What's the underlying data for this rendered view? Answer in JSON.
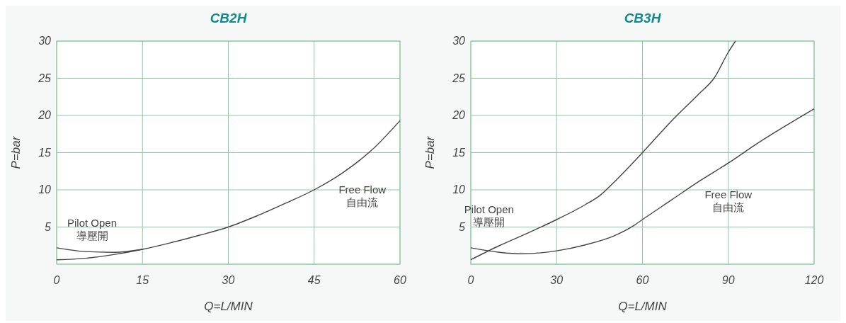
{
  "chart_data": [
    {
      "type": "line",
      "title": "CB2H",
      "xlabel": "Q=L/MIN",
      "ylabel": "P=bar",
      "xlim": [
        0,
        60
      ],
      "ylim": [
        0,
        30
      ],
      "xticks": [
        0,
        15,
        30,
        45,
        60
      ],
      "yticks": [
        {
          "value": 0,
          "label": null
        },
        5,
        10,
        15,
        20,
        25,
        30
      ],
      "grid": true,
      "marker": "none",
      "line_style": "solid",
      "series": [
        {
          "name": "Pilot Open\n導壓開",
          "color": "#444444",
          "x": [
            0,
            5,
            10,
            15
          ],
          "values": [
            2.2,
            1.7,
            1.6,
            2.0
          ]
        },
        {
          "name": "Free Flow\n自由流",
          "color": "#444444",
          "x": [
            0,
            5,
            10,
            15,
            20,
            25,
            30,
            35,
            40,
            45,
            50,
            55,
            60
          ],
          "values": [
            0.6,
            0.8,
            1.3,
            2.0,
            2.9,
            3.9,
            5.0,
            6.5,
            8.2,
            10.0,
            12.3,
            15.3,
            19.3
          ]
        }
      ]
    },
    {
      "type": "line",
      "title": "CB3H",
      "xlabel": "Q=L/MIN",
      "ylabel": "P=bar",
      "xlim": [
        0,
        120
      ],
      "ylim": [
        0,
        30
      ],
      "xticks": [
        0,
        30,
        60,
        90,
        120
      ],
      "yticks": [
        {
          "value": 0,
          "label": null
        },
        5,
        10,
        15,
        20,
        25,
        30
      ],
      "grid": true,
      "marker": "none",
      "line_style": "solid",
      "series": [
        {
          "name": "Pilot Open\n導壓開",
          "color": "#444444",
          "x": [
            0,
            10,
            20,
            30,
            40,
            45,
            50,
            60,
            70,
            80,
            85,
            90,
            92.5
          ],
          "values": [
            0.6,
            2.5,
            4.2,
            6.0,
            8.0,
            9.2,
            11.0,
            15.0,
            19.2,
            23.0,
            25.0,
            28.5,
            30.0
          ]
        },
        {
          "name": "Free Flow\n自由流",
          "color": "#444444",
          "x": [
            0,
            10,
            18,
            30,
            40,
            50,
            57,
            60,
            70,
            80,
            90,
            100,
            110,
            120
          ],
          "values": [
            2.2,
            1.6,
            1.4,
            1.8,
            2.6,
            3.8,
            5.2,
            6.0,
            8.6,
            11.2,
            13.6,
            16.2,
            18.6,
            20.9
          ]
        }
      ]
    }
  ]
}
